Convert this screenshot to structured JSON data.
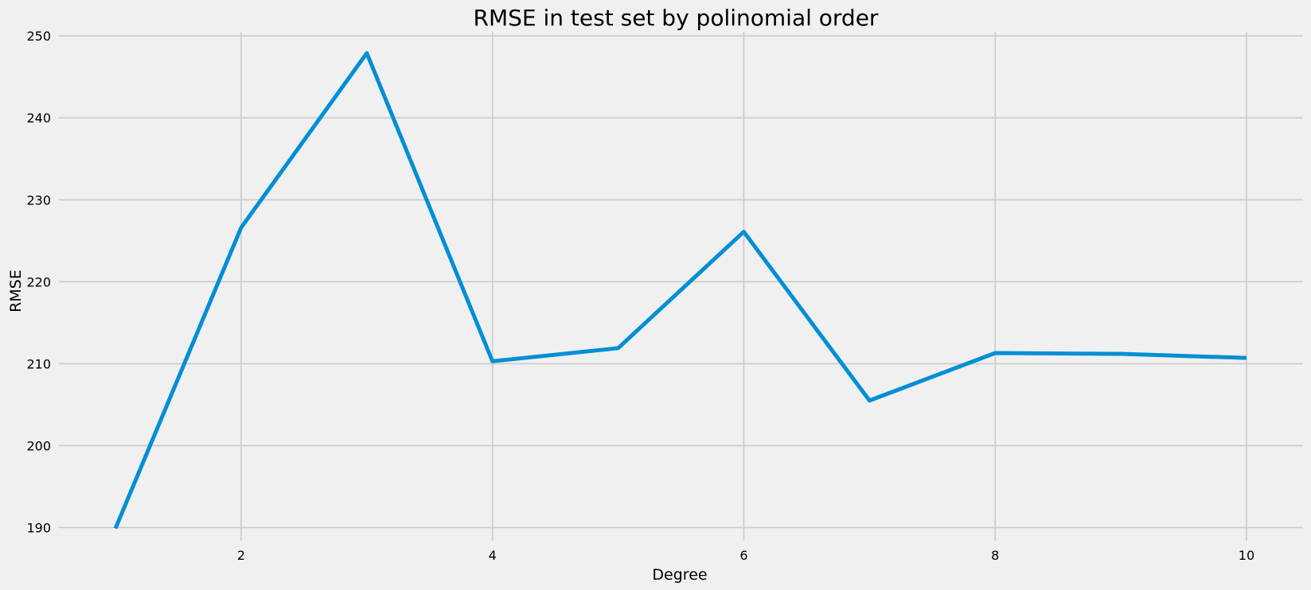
{
  "chart_data": {
    "type": "line",
    "title": "RMSE in test set by polinomial order",
    "xlabel": "Degree",
    "ylabel": "RMSE",
    "x": [
      1,
      2,
      3,
      4,
      5,
      6,
      7,
      8,
      9,
      10
    ],
    "series": [
      {
        "values": [
          189.9,
          226.6,
          247.9,
          210.3,
          211.9,
          226.1,
          205.5,
          211.3,
          211.2,
          210.7
        ],
        "color": "#008fd5"
      }
    ],
    "xticks": [
      "2",
      "4",
      "6",
      "8",
      "10"
    ],
    "yticks": [
      "190",
      "200",
      "210",
      "220",
      "230",
      "240",
      "250"
    ],
    "xlim": [
      0.55,
      10.45
    ],
    "ylim": [
      188.4,
      250.5
    ],
    "grid": true,
    "background": "#f0f0f0"
  }
}
